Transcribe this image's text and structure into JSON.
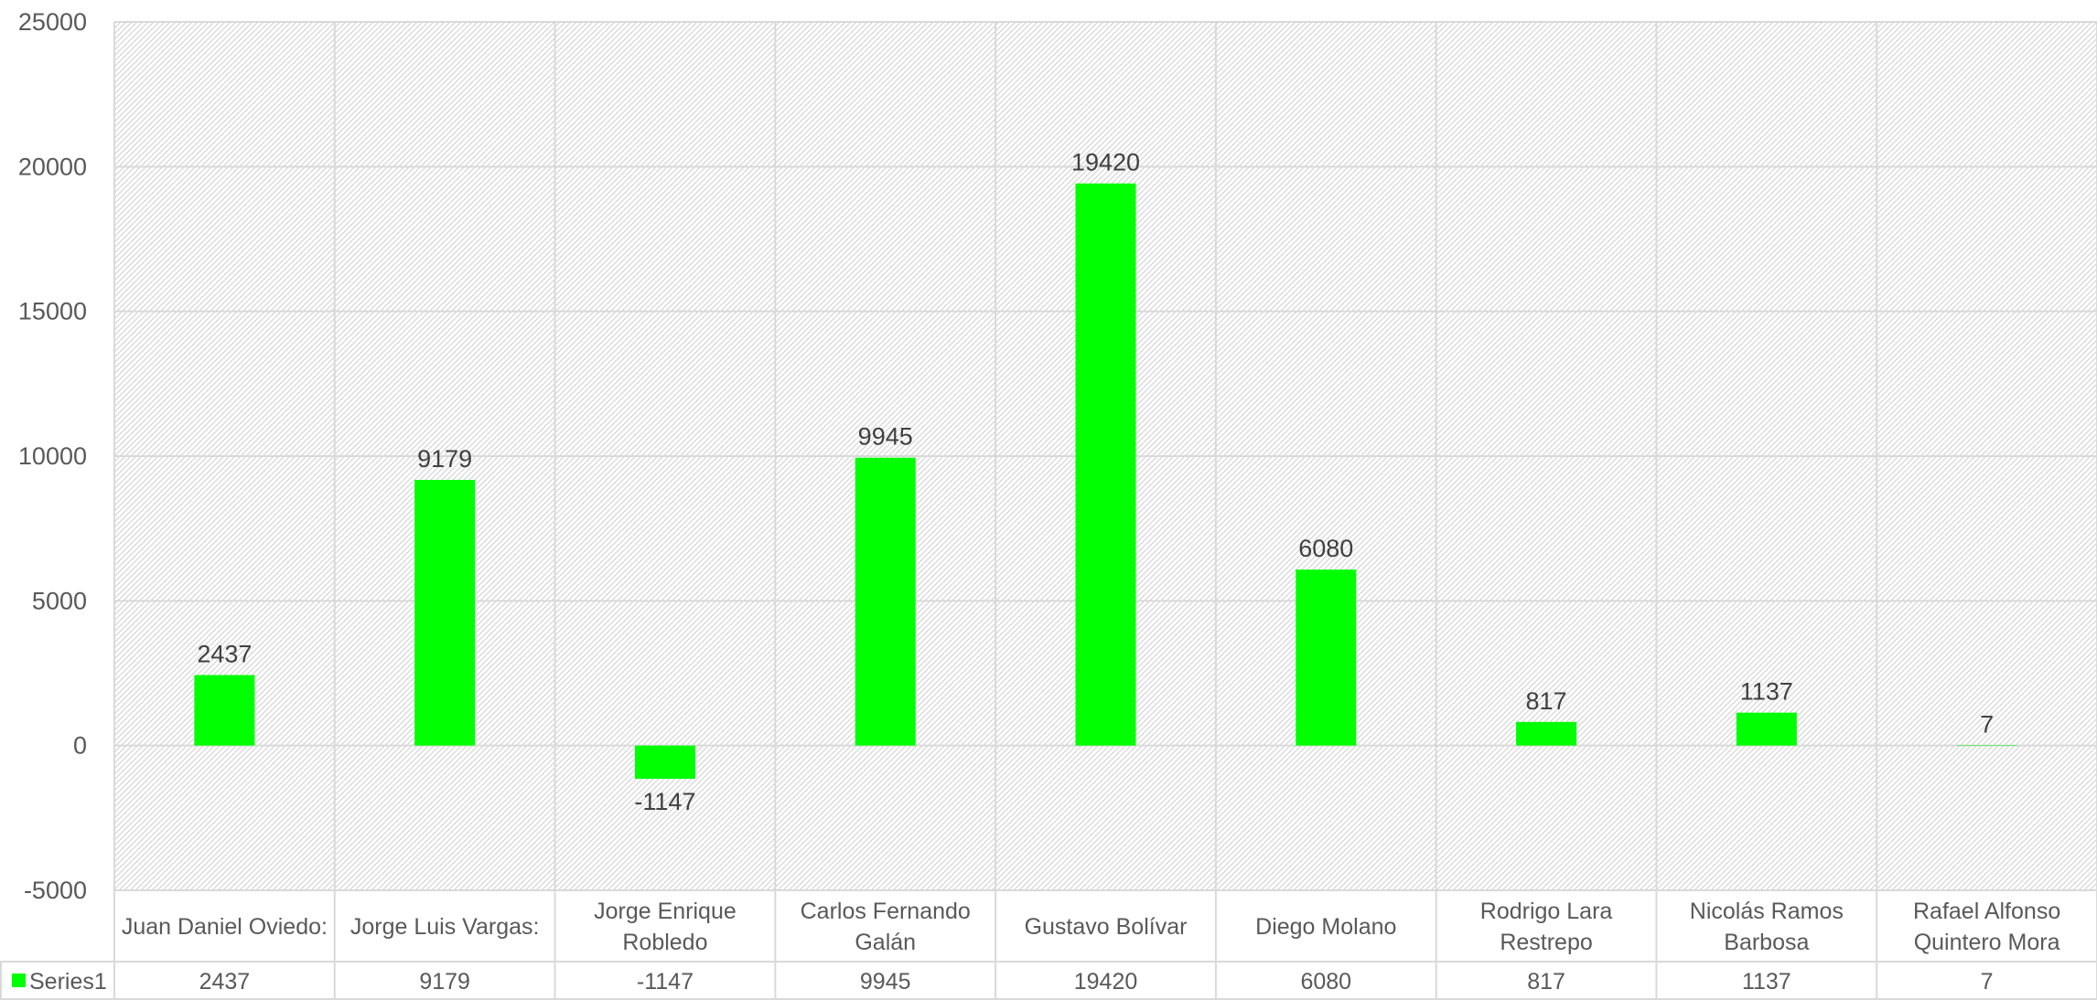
{
  "chart_data": {
    "type": "bar",
    "categories": [
      [
        "Juan Daniel Oviedo:"
      ],
      [
        "Jorge Luis Vargas:"
      ],
      [
        "Jorge Enrique",
        "Robledo"
      ],
      [
        "Carlos Fernando",
        "Galán"
      ],
      [
        "Gustavo Bolívar"
      ],
      [
        "Diego Molano"
      ],
      [
        "Rodrigo Lara",
        "Restrepo"
      ],
      [
        "Nicolás Ramos",
        "Barbosa"
      ],
      [
        "Rafael Alfonso",
        "Quintero Mora"
      ]
    ],
    "series": [
      {
        "name": "Series1",
        "values": [
          2437,
          9179,
          -1147,
          9945,
          19420,
          6080,
          817,
          1137,
          7
        ]
      }
    ],
    "ylim": [
      -5000,
      25000
    ],
    "yticks": [
      "25000",
      "20000",
      "15000",
      "10000",
      "5000",
      "0",
      "-5000"
    ],
    "data_table": true,
    "legend_key_in_table": true,
    "colors": {
      "bar": "#00FF00",
      "grid": "#D9D9D9",
      "hatch": "#D0D0D0"
    },
    "grid": true,
    "plot_background": "diagonal-hatch"
  }
}
